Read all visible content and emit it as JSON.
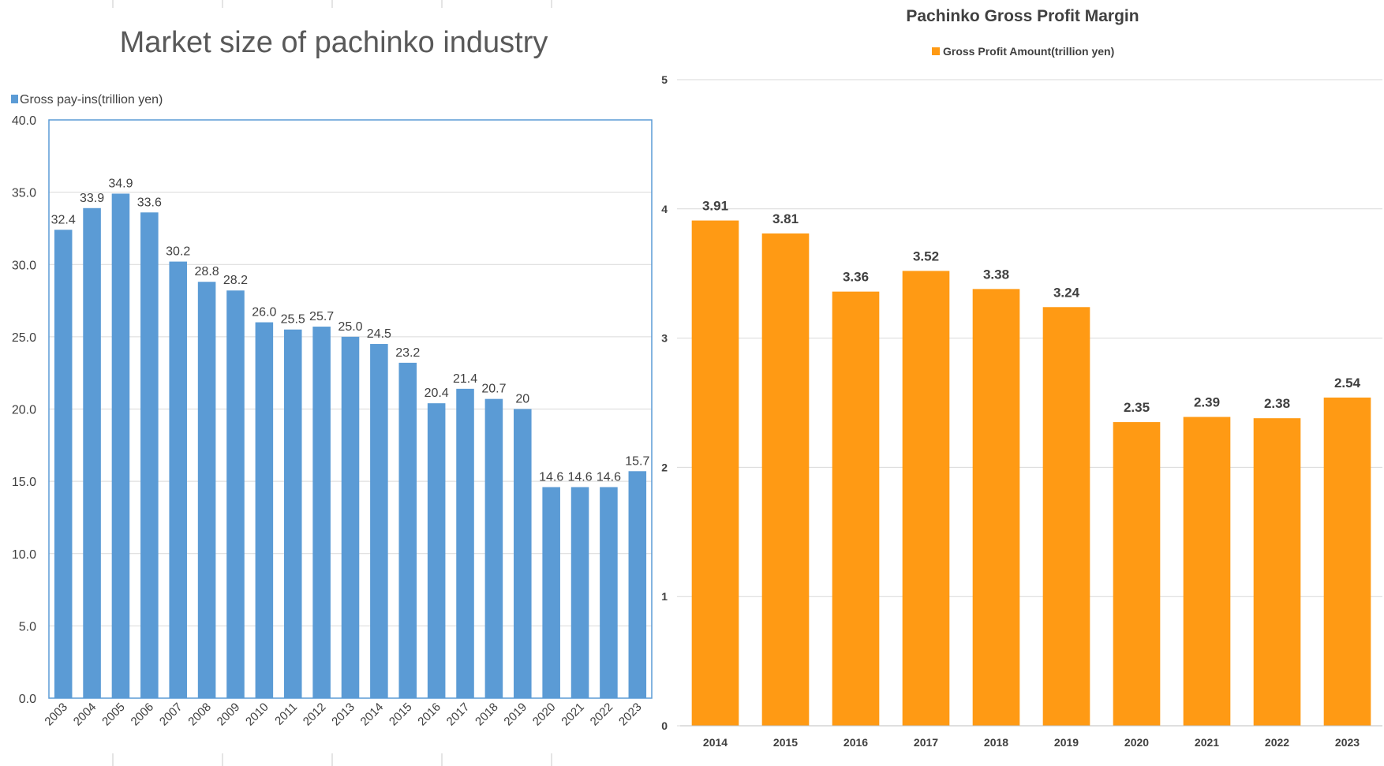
{
  "chart_data": [
    {
      "type": "bar",
      "title": "Market size of pachinko industry",
      "legend": "Gross pay-ins(trillion yen)",
      "legend_position": "top-left",
      "color": "#5b9bd5",
      "categories": [
        "2003",
        "2004",
        "2005",
        "2006",
        "2007",
        "2008",
        "2009",
        "2010",
        "2011",
        "2012",
        "2013",
        "2014",
        "2015",
        "2016",
        "2017",
        "2018",
        "2019",
        "2020",
        "2021",
        "2022",
        "2023"
      ],
      "values": [
        32.4,
        33.9,
        34.9,
        33.6,
        30.2,
        28.8,
        28.2,
        26.0,
        25.5,
        25.7,
        25.0,
        24.5,
        23.2,
        20.4,
        21.4,
        20.7,
        20,
        14.6,
        14.6,
        14.6,
        15.7
      ],
      "value_labels": [
        "32.4",
        "33.9",
        "34.9",
        "33.6",
        "30.2",
        "28.8",
        "28.2",
        "26.0",
        "25.5",
        "25.7",
        "25.0",
        "24.5",
        "23.2",
        "20.4",
        "21.4",
        "20.7",
        "20",
        "14.6",
        "14.6",
        "14.6",
        "15.7"
      ],
      "ylim": [
        0,
        40
      ],
      "yticks": [
        "0.0",
        "5.0",
        "10.0",
        "15.0",
        "20.0",
        "25.0",
        "30.0",
        "35.0",
        "40.0"
      ],
      "grid": true
    },
    {
      "type": "bar",
      "title": "Pachinko Gross Profit Margin",
      "legend": "Gross Profit Amount(trillion yen)",
      "legend_position": "top-center",
      "color": "#ff9a14",
      "categories": [
        "2014",
        "2015",
        "2016",
        "2017",
        "2018",
        "2019",
        "2020",
        "2021",
        "2022",
        "2023"
      ],
      "values": [
        3.91,
        3.81,
        3.36,
        3.52,
        3.38,
        3.24,
        2.35,
        2.39,
        2.38,
        2.54
      ],
      "value_labels": [
        "3.91",
        "3.81",
        "3.36",
        "3.52",
        "3.38",
        "3.24",
        "2.35",
        "2.39",
        "2.38",
        "2.54"
      ],
      "ylim": [
        0,
        5
      ],
      "yticks": [
        "0",
        "1",
        "2",
        "3",
        "4",
        "5"
      ],
      "grid": true
    }
  ]
}
